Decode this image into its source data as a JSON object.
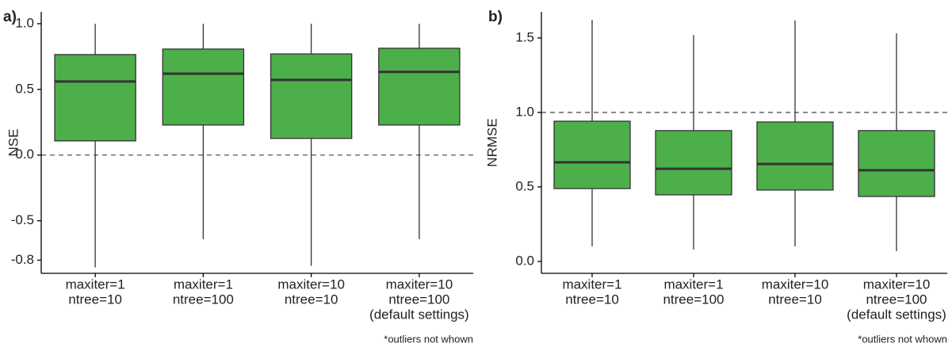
{
  "chart_data": [
    {
      "type": "box",
      "panel_label": "a)",
      "ylabel": "NSE",
      "categories": [
        [
          "maxiter=1",
          "ntree=10"
        ],
        [
          "maxiter=1",
          "ntree=100"
        ],
        [
          "maxiter=10",
          "ntree=10"
        ],
        [
          "maxiter=10",
          "ntree=100",
          "(default settings)"
        ]
      ],
      "boxes": [
        {
          "whislo": -0.855,
          "q1": 0.108,
          "med": 0.56,
          "q3": 0.765,
          "whishi": 1.0
        },
        {
          "whislo": -0.64,
          "q1": 0.229,
          "med": 0.62,
          "q3": 0.807,
          "whishi": 1.0
        },
        {
          "whislo": -0.843,
          "q1": 0.127,
          "med": 0.572,
          "q3": 0.77,
          "whishi": 1.0
        },
        {
          "whislo": -0.64,
          "q1": 0.229,
          "med": 0.633,
          "q3": 0.813,
          "whishi": 1.0
        }
      ],
      "color": "#4daf4a",
      "hline": 0,
      "ylim": [
        -0.9,
        1.09
      ],
      "yticks": [
        -0.8,
        -0.5,
        {
          "value": 0,
          "label": "0.0"
        },
        0.5,
        {
          "value": 1,
          "label": "1.0"
        }
      ],
      "note": "*outliers not whown"
    },
    {
      "type": "box",
      "panel_label": "b)",
      "ylabel": "NRMSE",
      "categories": [
        [
          "maxiter=1",
          "ntree=10"
        ],
        [
          "maxiter=1",
          "ntree=100"
        ],
        [
          "maxiter=10",
          "ntree=10"
        ],
        [
          "maxiter=10",
          "ntree=100",
          "(default settings)"
        ]
      ],
      "boxes": [
        {
          "whislo": 0.101,
          "q1": 0.489,
          "med": 0.665,
          "q3": 0.941,
          "whishi": 1.622
        },
        {
          "whislo": 0.08,
          "q1": 0.447,
          "med": 0.622,
          "q3": 0.878,
          "whishi": 1.52
        },
        {
          "whislo": 0.101,
          "q1": 0.479,
          "med": 0.654,
          "q3": 0.936,
          "whishi": 1.617
        },
        {
          "whislo": 0.069,
          "q1": 0.436,
          "med": 0.612,
          "q3": 0.878,
          "whishi": 1.531
        }
      ],
      "color": "#4daf4a",
      "hline": 1,
      "ylim": [
        -0.08,
        1.675
      ],
      "yticks": [
        {
          "value": 0,
          "label": "0.0"
        },
        0.5,
        {
          "value": 1,
          "label": "1.0"
        },
        1.5
      ],
      "note": "*outliers not whown"
    }
  ]
}
